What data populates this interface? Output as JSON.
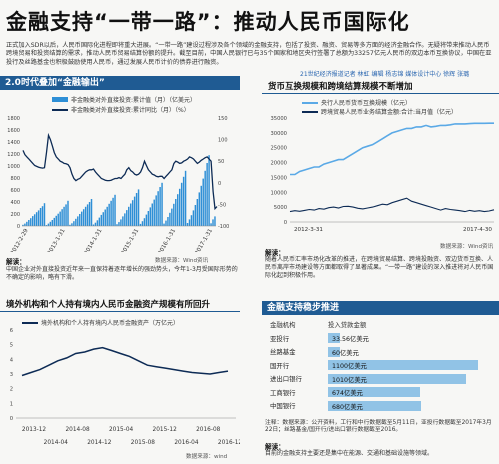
{
  "header": {
    "title": "金融支持“一带一路”：推动人民币国际化",
    "intro": "正式加入SDR以后，人民币国际化进程即将重大进展。“一带一路”建设过程涉及各个领域的金融支持，包括了投资、融资、贸易等多方面的经济金融合作。无疑将带来推动人民币跨境贸易和投资结算的需求，推动人民币贸易结算份额的提升。截至目前，中国人民银行已与35个国家和地区央行签署了总额为33257亿元人民币的双边本币互换协议，中国在亚投行及丝路基金也积极鼓励使用人民币，通过发展人民币计价的债券进行融资。",
    "byline": "21世纪经济报道记者 林虹 编辑 杨志锦 媒体设计中心 徐辉 张璐"
  },
  "panel_odi": {
    "banner": "2.0时代叠加“金融输出”",
    "source": "数据来源：Wind资讯",
    "note_label": "解读：",
    "note": "中国企业对外直接投资近年来一直保持着逐年增长的强劲势头，今年1-3月受国际形势的不确定的影响，略有下滑。"
  },
  "panel_swap": {
    "title": "货币互换规模和跨境结算规模不断增加",
    "source": "数据来源：Wind资讯",
    "note_label": "解读：",
    "note": "随着人民币汇率市场化改革的推进，在跨境贸易结算、跨境投融资、双边货币互换、人民币离岸市场建设等方面都取得了显著成果。“一带一路”建设的深入推进将对人民币国际化起到积极作用。"
  },
  "panel_assets": {
    "title": "境外机构和个人持有境内人民币金融资产规模有所回升",
    "source": "数据来源：wind"
  },
  "panel_finance": {
    "banner": "金融支持稳步推进",
    "col_org": "金融机构",
    "col_amt": "投入贷款金额",
    "rows": [
      {
        "org": "亚投行",
        "amount": "33.56亿美元",
        "value": 33.56
      },
      {
        "org": "丝路基金",
        "amount": "60亿美元",
        "value": 60
      },
      {
        "org": "国开行",
        "amount": "1100亿美元",
        "value": 1100
      },
      {
        "org": "进出口银行",
        "amount": "1010亿美元",
        "value": 1010
      },
      {
        "org": "工商银行",
        "amount": "674亿美元",
        "value": 674
      },
      {
        "org": "中国银行",
        "amount": "680亿美元",
        "value": 680
      }
    ],
    "note_label": "注释：",
    "note": "数据来源：公开资料，工行和中行数据截至5月11日，亚投行数据截至2017年3月22日；丝路基金/国开行/进出口银行数据截至2016。",
    "foot_label": "解读：",
    "foot": "目前的金融支持主要还是集中在能源、交通和基础设施等领域。"
  },
  "colors": {
    "banner": "#1f5b93",
    "bar": "#2e8fd6",
    "line": "#0d2b55",
    "swap": "#5aa9e6",
    "bar_table": "#6fb2e0"
  },
  "chart_data": [
    {
      "type": "bar",
      "title": "",
      "series": [
        {
          "name": "非金融类对外直接投资:累计值（月）（亿美元）",
          "kind": "bar",
          "axis": "left",
          "values": [
            20,
            40,
            70,
            100,
            130,
            165,
            195,
            230,
            260,
            300,
            330,
            380,
            15,
            40,
            70,
            100,
            135,
            170,
            205,
            240,
            280,
            320,
            360,
            420,
            20,
            45,
            80,
            120,
            160,
            200,
            240,
            280,
            320,
            360,
            400,
            450,
            25,
            55,
            95,
            140,
            185,
            230,
            275,
            320,
            370,
            420,
            470,
            520,
            30,
            65,
            110,
            160,
            210,
            265,
            320,
            375,
            430,
            490,
            550,
            610,
            35,
            80,
            130,
            190,
            250,
            310,
            375,
            440,
            510,
            580,
            650,
            720,
            40,
            90,
            150,
            220,
            290,
            370,
            450,
            530,
            620,
            720,
            820,
            920,
            50,
            110,
            180,
            260,
            350,
            450,
            560,
            670,
            790,
            920,
            1050,
            1180,
            45,
            110,
            160
          ]
        },
        {
          "name": "非金融类对外直接投资:累计同比（月）（%）",
          "kind": "line",
          "axis": "right",
          "values": [
            75,
            65,
            60,
            55,
            50,
            45,
            40,
            38,
            36,
            35,
            34,
            35,
            70,
            110,
            100,
            85,
            70,
            60,
            55,
            50,
            48,
            45,
            44,
            42,
            35,
            20,
            10,
            5,
            8,
            10,
            15,
            20,
            25,
            28,
            30,
            30,
            32,
            25,
            20,
            15,
            10,
            8,
            6,
            5,
            5,
            6,
            8,
            10,
            10,
            12,
            10,
            15,
            20,
            30,
            35,
            28,
            25,
            20,
            18,
            20,
            25,
            35,
            50,
            40,
            30,
            25,
            20,
            18,
            15,
            14,
            15,
            15,
            10,
            15,
            20,
            25,
            30,
            45,
            50,
            48,
            45,
            46,
            50,
            52,
            55,
            60,
            58,
            55,
            50,
            45,
            48,
            52,
            55,
            58,
            60,
            55,
            50,
            -20,
            -60,
            -55
          ]
        }
      ],
      "x_tick_labels": [
        "2012-2-29",
        "2013-1-31",
        "2014-1-31",
        "2015-1-31",
        "2016-1-31",
        "2017-1-31"
      ],
      "ylim_left": [
        0,
        1800
      ],
      "ylim_right": [
        -100,
        150
      ],
      "ytick_left": [
        0,
        200,
        400,
        600,
        800,
        1000,
        1200,
        1400,
        1600,
        1800
      ],
      "ytick_right": [
        -100,
        -50,
        0,
        50,
        100,
        150
      ],
      "grid": false
    },
    {
      "type": "line",
      "title": "",
      "series": [
        {
          "name": "央行人民币货币互换规模（亿元）",
          "axis": "left",
          "values": [
            16000,
            16000,
            17000,
            17500,
            18000,
            18500,
            18500,
            19500,
            20000,
            20500,
            21000,
            21000,
            22000,
            23000,
            24000,
            25000,
            25500,
            26000,
            27000,
            28000,
            29000,
            30000,
            30500,
            31000,
            31500,
            31500,
            32000,
            32000,
            32500,
            32000,
            32200,
            32500,
            32500,
            32700,
            33000,
            33000,
            33000,
            33100,
            33200,
            33200,
            33200,
            33257,
            33257
          ]
        },
        {
          "name": "跨境贸易人民币业务结算金额:合计:当月值（亿元）",
          "axis": "left",
          "values": [
            3500,
            3800,
            3600,
            3900,
            4200,
            4000,
            4500,
            4300,
            4800,
            5000,
            4700,
            5200,
            5300,
            5000,
            4600,
            4400,
            4700,
            5000,
            5500,
            6000,
            5800,
            6500,
            7000,
            7500,
            8000,
            7000,
            6500,
            6000,
            5500,
            5000,
            4500,
            4000,
            4500,
            4200,
            4000,
            3800,
            3500,
            3900,
            3600,
            3800,
            3500,
            3700,
            4100
          ]
        }
      ],
      "x_tick_labels": [
        "2012-3-31",
        "2017-4-30"
      ],
      "ylim": [
        0,
        35000
      ],
      "yticks": [
        0,
        5000,
        10000,
        15000,
        20000,
        25000,
        30000,
        35000
      ],
      "grid": false
    },
    {
      "type": "line",
      "title": "",
      "series": [
        {
          "name": "境外机构和个人持有境内人民币金融资产（万亿元）",
          "values": [
            2.9,
            3.1,
            3.3,
            3.6,
            3.9,
            4.1,
            4.4,
            4.5,
            4.7,
            4.8,
            4.6,
            4.4,
            4.2,
            3.9,
            3.6,
            3.5,
            3.4,
            3.3,
            3.2,
            3.1,
            3.05,
            3.0,
            3.1,
            3.2
          ]
        }
      ],
      "x_tick_labels": [
        "2013-12",
        "2014-04",
        "2014-08",
        "2014-12",
        "2015-04",
        "2015-08",
        "2015-12",
        "2016-04",
        "2016-08",
        "2016-12"
      ],
      "ylim": [
        0,
        6
      ],
      "yticks": [
        0,
        1,
        2,
        3,
        4,
        5,
        6
      ],
      "grid": false
    }
  ]
}
